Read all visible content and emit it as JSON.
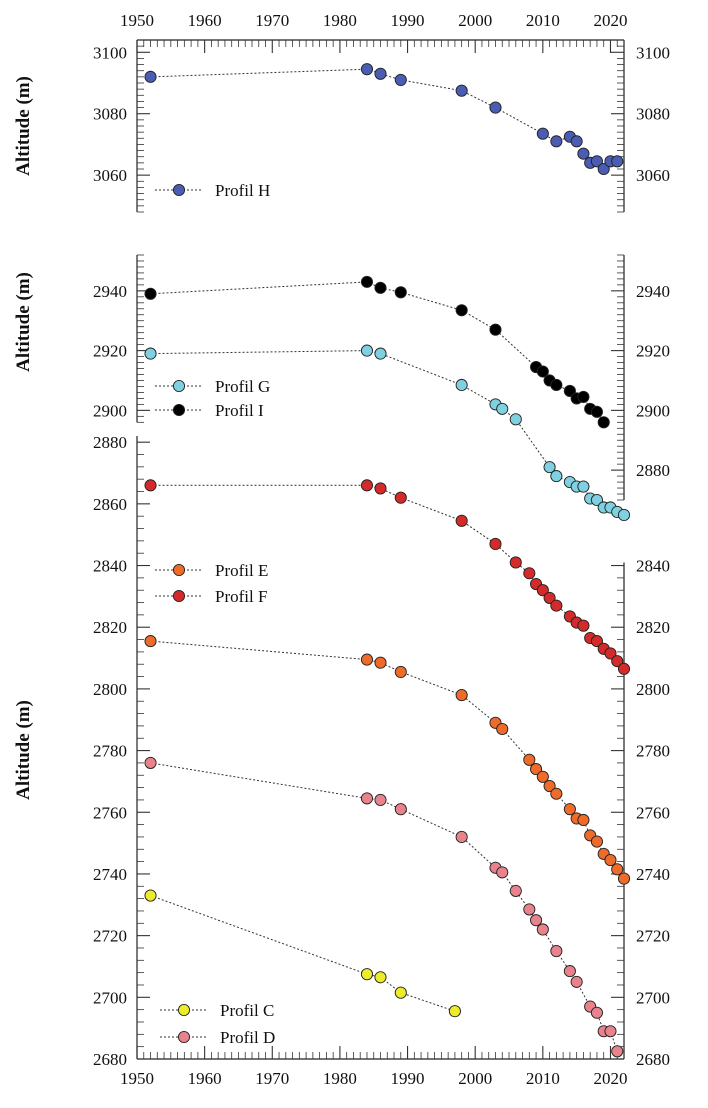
{
  "chart_data": {
    "type": "scatter",
    "x_ticks": [
      1950,
      1960,
      1970,
      1980,
      1990,
      2000,
      2010,
      2020
    ],
    "xlim": [
      1950,
      2022
    ],
    "panels": [
      {
        "name": "top",
        "ylabel": "Altitude (m)",
        "ylim": [
          3048,
          3104
        ],
        "y_ticks": [
          3060,
          3080,
          3100
        ],
        "series": [
          {
            "name": "Profil H",
            "color": "#4a5db3",
            "points": [
              [
                1952,
                3092
              ],
              [
                1984,
                3094.5
              ],
              [
                1986,
                3093
              ],
              [
                1989,
                3091
              ],
              [
                1998,
                3087.5
              ],
              [
                2003,
                3082
              ],
              [
                2010,
                3073.5
              ],
              [
                2012,
                3071
              ],
              [
                2014,
                3072.5
              ],
              [
                2015,
                3071
              ],
              [
                2016,
                3067
              ],
              [
                2017,
                3064
              ],
              [
                2018,
                3064.5
              ],
              [
                2019,
                3062
              ],
              [
                2020,
                3064.5
              ],
              [
                2021,
                3064.5
              ]
            ]
          }
        ]
      },
      {
        "name": "middle",
        "ylabel": "Altitude (m)",
        "ylim": [
          2870,
          2953
        ],
        "y_ticks_left": [
          2880,
          2900,
          2920,
          2940
        ],
        "y_ticks_right": [
          2880,
          2900,
          2920,
          2940
        ],
        "series": [
          {
            "name": "Profil G",
            "color": "#7fd0e0",
            "points": [
              [
                1952,
                2919
              ],
              [
                1984,
                2920
              ],
              [
                1986,
                2919
              ],
              [
                1998,
                2908.5
              ],
              [
                2003,
                2902
              ],
              [
                2004,
                2900.5
              ],
              [
                2006,
                2897
              ],
              [
                2011,
                2881
              ],
              [
                2012,
                2878
              ],
              [
                2014,
                2876
              ],
              [
                2015,
                2874.5
              ],
              [
                2016,
                2874.5
              ],
              [
                2017,
                2870.5
              ],
              [
                2018,
                2870
              ],
              [
                2019,
                2867.5
              ],
              [
                2020,
                2867.5
              ],
              [
                2021,
                2866
              ],
              [
                2022,
                2865
              ]
            ]
          },
          {
            "name": "Profil I",
            "color": "#000000",
            "points": [
              [
                1952,
                2939
              ],
              [
                1984,
                2943
              ],
              [
                1986,
                2941
              ],
              [
                1989,
                2939.5
              ],
              [
                1998,
                2933.5
              ],
              [
                2003,
                2927
              ],
              [
                2009,
                2914.5
              ],
              [
                2010,
                2913
              ],
              [
                2011,
                2910
              ],
              [
                2012,
                2908.5
              ],
              [
                2014,
                2906.5
              ],
              [
                2015,
                2904
              ],
              [
                2016,
                2904.5
              ],
              [
                2017,
                2900.5
              ],
              [
                2018,
                2899.5
              ],
              [
                2019,
                2896
              ]
            ]
          }
        ]
      },
      {
        "name": "bottom",
        "ylabel": "Altitude (m)",
        "ylim": [
          2680,
          2882
        ],
        "y_ticks_left": [
          2680,
          2700,
          2720,
          2740,
          2760,
          2780,
          2800,
          2820,
          2840,
          2860,
          2880
        ],
        "y_ticks_right": [
          2680,
          2700,
          2720,
          2740,
          2760,
          2780,
          2800,
          2820,
          2840
        ],
        "series": [
          {
            "name": "Profil E",
            "color": "#ef6b2a",
            "points": [
              [
                1952,
                2815.5
              ],
              [
                1984,
                2809.5
              ],
              [
                1986,
                2808.5
              ],
              [
                1989,
                2805.5
              ],
              [
                1998,
                2798
              ],
              [
                2003,
                2789
              ],
              [
                2004,
                2787
              ],
              [
                2008,
                2777
              ],
              [
                2009,
                2774
              ],
              [
                2010,
                2771.5
              ],
              [
                2011,
                2768.5
              ],
              [
                2012,
                2766
              ],
              [
                2014,
                2761
              ],
              [
                2015,
                2758
              ],
              [
                2016,
                2757.5
              ],
              [
                2017,
                2752.5
              ],
              [
                2018,
                2750.5
              ],
              [
                2019,
                2746.5
              ],
              [
                2020,
                2744.5
              ],
              [
                2021,
                2741.5
              ],
              [
                2022,
                2738.5
              ]
            ]
          },
          {
            "name": "Profil F",
            "color": "#d42a2a",
            "points": [
              [
                1952,
                2866
              ],
              [
                1984,
                2866
              ],
              [
                1986,
                2865
              ],
              [
                1989,
                2862
              ],
              [
                1998,
                2854.5
              ],
              [
                2003,
                2847
              ],
              [
                2006,
                2841
              ],
              [
                2008,
                2837.5
              ],
              [
                2009,
                2834
              ],
              [
                2010,
                2832
              ],
              [
                2011,
                2829.5
              ],
              [
                2012,
                2827
              ],
              [
                2014,
                2823.5
              ],
              [
                2015,
                2821.5
              ],
              [
                2016,
                2820.5
              ],
              [
                2017,
                2816.5
              ],
              [
                2018,
                2815.5
              ],
              [
                2019,
                2813
              ],
              [
                2020,
                2811.5
              ],
              [
                2021,
                2809
              ],
              [
                2022,
                2806.5
              ]
            ]
          },
          {
            "name": "Profil C",
            "color": "#ecec2a",
            "points": [
              [
                1952,
                2733
              ],
              [
                1984,
                2707.5
              ],
              [
                1986,
                2706.5
              ],
              [
                1989,
                2701.5
              ],
              [
                1997,
                2695.5
              ]
            ]
          },
          {
            "name": "Profil D",
            "color": "#e8838e",
            "points": [
              [
                1952,
                2776
              ],
              [
                1984,
                2764.5
              ],
              [
                1986,
                2764
              ],
              [
                1989,
                2761
              ],
              [
                1998,
                2752
              ],
              [
                2003,
                2742
              ],
              [
                2004,
                2740.5
              ],
              [
                2006,
                2734.5
              ],
              [
                2008,
                2728.5
              ],
              [
                2009,
                2725
              ],
              [
                2010,
                2722
              ],
              [
                2012,
                2715
              ],
              [
                2014,
                2708.5
              ],
              [
                2015,
                2705
              ],
              [
                2017,
                2697
              ],
              [
                2018,
                2695
              ],
              [
                2019,
                2689
              ],
              [
                2020,
                2689
              ],
              [
                2021,
                2682.5
              ]
            ]
          }
        ]
      }
    ],
    "legends": [
      {
        "panel": "top",
        "position": "bottom-left",
        "entries": [
          "Profil H"
        ]
      },
      {
        "panel": "middle",
        "position": "bottom-left",
        "entries": [
          "Profil G",
          "Profil I"
        ]
      },
      {
        "panel": "bottom",
        "position": "upper-left",
        "entries": [
          "Profil E",
          "Profil F"
        ]
      },
      {
        "panel": "bottom",
        "position": "bottom-left",
        "entries": [
          "Profil C",
          "Profil D"
        ]
      }
    ]
  }
}
